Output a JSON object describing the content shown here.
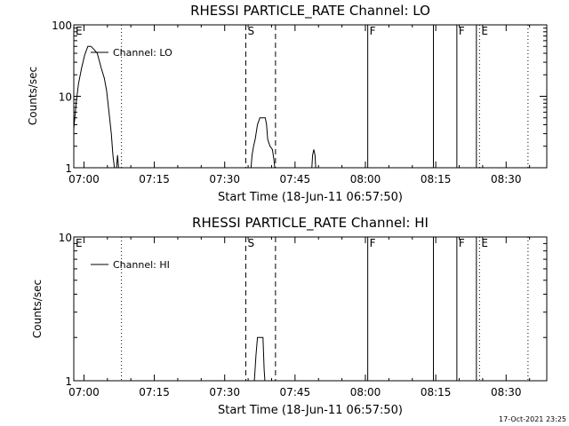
{
  "chart_data": [
    {
      "type": "line",
      "title": "RHESSI PARTICLE_RATE Channel: LO",
      "xlabel": "Start Time (18-Jun-11 06:57:50)",
      "ylabel": "Counts/sec",
      "y_scale": "log",
      "ylim": [
        1,
        100
      ],
      "x_range": [
        "06:57:50",
        "08:38:40"
      ],
      "x_ticks": [
        "07:00",
        "07:15",
        "07:30",
        "07:45",
        "08:00",
        "08:15",
        "08:30"
      ],
      "y_ticks": [
        "1",
        "10",
        "100"
      ],
      "legend": "Channel: LO",
      "legend_position": "top-left",
      "grid": false,
      "markers": [
        {
          "time": "06:57:50",
          "style": "solid",
          "label": "E"
        },
        {
          "time": "07:08:00",
          "style": "dotted",
          "label": ""
        },
        {
          "time": "07:34:30",
          "style": "dashed",
          "label": "S"
        },
        {
          "time": "07:40:50",
          "style": "dashed",
          "label": ""
        },
        {
          "time": "08:00:30",
          "style": "solid",
          "label": "F"
        },
        {
          "time": "08:14:30",
          "style": "solid",
          "label": ""
        },
        {
          "time": "08:19:30",
          "style": "solid",
          "label": "F"
        },
        {
          "time": "08:23:40",
          "style": "solid",
          "label": ""
        },
        {
          "time": "08:24:20",
          "style": "dotted",
          "label": "E"
        },
        {
          "time": "08:34:40",
          "style": "dotted",
          "label": ""
        }
      ],
      "series": [
        {
          "x": [
            "06:57:50",
            "06:58:20",
            "06:58:50",
            "06:59:30",
            "07:00:10",
            "07:00:50",
            "07:01:30",
            "07:02:10",
            "07:02:50",
            "07:03:40",
            "07:04:20",
            "07:04:50",
            "07:05:20",
            "07:05:50",
            "07:06:10",
            "07:06:30",
            "07:06:50",
            "07:07:10",
            "07:07:30"
          ],
          "y": [
            3.5,
            8,
            15,
            25,
            38,
            50,
            50,
            45,
            40,
            25,
            18,
            12,
            6,
            3,
            1.5,
            1,
            0.8,
            1.5,
            0.8
          ]
        },
        {
          "x": [
            "07:35:30",
            "07:35:50",
            "07:36:10",
            "07:36:30",
            "07:37:00",
            "07:37:30",
            "07:38:10",
            "07:38:40",
            "07:38:55",
            "07:39:10",
            "07:39:40",
            "07:40:10",
            "07:40:30",
            "07:40:50"
          ],
          "y": [
            0.8,
            1.5,
            2,
            2.5,
            4,
            5,
            5,
            5,
            4,
            2.5,
            2,
            1.8,
            1.3,
            0.8
          ]
        },
        {
          "x": [
            "07:48:30",
            "07:48:45",
            "07:49:00",
            "07:49:15",
            "07:49:30"
          ],
          "y": [
            0.8,
            1.5,
            1.8,
            1.5,
            0.8
          ]
        }
      ]
    },
    {
      "type": "line",
      "title": "RHESSI PARTICLE_RATE Channel: HI",
      "xlabel": "Start Time (18-Jun-11 06:57:50)",
      "ylabel": "Counts/sec",
      "y_scale": "log",
      "ylim": [
        1,
        10
      ],
      "x_range": [
        "06:57:50",
        "08:38:40"
      ],
      "x_ticks": [
        "07:00",
        "07:15",
        "07:30",
        "07:45",
        "08:00",
        "08:15",
        "08:30"
      ],
      "y_ticks": [
        "1",
        "10"
      ],
      "legend": "Channel: HI",
      "legend_position": "top-left",
      "grid": false,
      "markers": [
        {
          "time": "06:57:50",
          "style": "solid",
          "label": "E"
        },
        {
          "time": "07:08:00",
          "style": "dotted",
          "label": ""
        },
        {
          "time": "07:34:30",
          "style": "dashed",
          "label": "S"
        },
        {
          "time": "07:40:50",
          "style": "dashed",
          "label": ""
        },
        {
          "time": "08:00:30",
          "style": "solid",
          "label": "F"
        },
        {
          "time": "08:14:30",
          "style": "solid",
          "label": ""
        },
        {
          "time": "08:19:30",
          "style": "solid",
          "label": "F"
        },
        {
          "time": "08:23:40",
          "style": "solid",
          "label": ""
        },
        {
          "time": "08:24:20",
          "style": "dotted",
          "label": "E"
        },
        {
          "time": "08:34:40",
          "style": "dotted",
          "label": ""
        }
      ],
      "series": [
        {
          "x": [
            "07:36:10",
            "07:36:20",
            "07:36:40",
            "07:37:00",
            "07:37:20",
            "07:37:40",
            "07:38:10",
            "07:38:25",
            "07:38:40"
          ],
          "y": [
            0.9,
            1,
            1.5,
            2,
            2,
            2,
            2,
            1.2,
            0.9
          ]
        }
      ]
    }
  ],
  "footer": {
    "timestamp": "17-Oct-2021 23:25"
  }
}
